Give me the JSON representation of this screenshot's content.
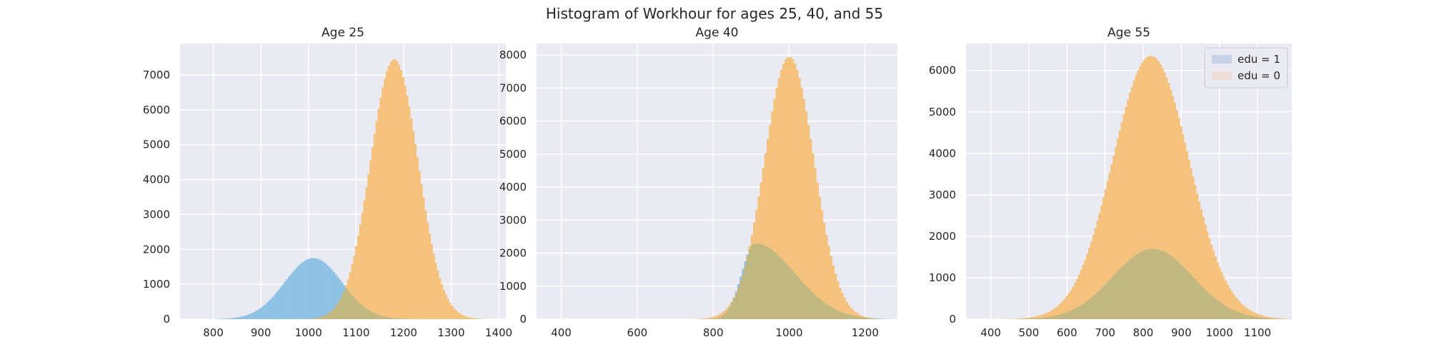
{
  "suptitle": "Histogram of Workhour for ages 25, 40, and 55",
  "colors": {
    "background": "#eaeaf2",
    "grid": "#ffffff",
    "edu1": "#8fc3e6",
    "edu0": "#f5c27d",
    "overlap": "#c2b77f",
    "edu1_legend": "#c6d0e6",
    "edu0_legend": "#eedcd6"
  },
  "chart_data": [
    {
      "type": "histogram",
      "title": "Age 25",
      "xlim": [
        730,
        1415
      ],
      "ylim": [
        0,
        7900
      ],
      "xticks": [
        800,
        900,
        1000,
        1100,
        1200,
        1300,
        1400
      ],
      "yticks": [
        0,
        1000,
        2000,
        3000,
        4000,
        5000,
        6000,
        7000
      ],
      "series": [
        {
          "key": "edu1",
          "peak_x": 1010,
          "peak_count": 1750,
          "sd": 60
        },
        {
          "key": "edu0",
          "peak_x": 1180,
          "peak_count": 7450,
          "sd": 50
        }
      ],
      "grid": true
    },
    {
      "type": "histogram",
      "title": "Age 40",
      "xlim": [
        335,
        1285
      ],
      "ylim": [
        0,
        8350
      ],
      "xticks": [
        400,
        600,
        800,
        1000,
        1200
      ],
      "yticks": [
        0,
        1000,
        2000,
        3000,
        4000,
        5000,
        6000,
        7000,
        8000
      ],
      "series": [
        {
          "key": "edu1",
          "peak_x": 910,
          "peak_count": 2300,
          "sd_left": 35,
          "sd_right": 105
        },
        {
          "key": "edu0",
          "peak_x": 1000,
          "peak_count": 7950,
          "sd": 65
        }
      ],
      "grid": true
    },
    {
      "type": "histogram",
      "title": "Age 55",
      "xlim": [
        335,
        1190
      ],
      "ylim": [
        0,
        6650
      ],
      "xticks": [
        400,
        500,
        600,
        700,
        800,
        900,
        1000,
        1100
      ],
      "yticks": [
        0,
        1000,
        2000,
        3000,
        4000,
        5000,
        6000
      ],
      "series": [
        {
          "key": "edu0",
          "peak_x": 820,
          "peak_count": 6350,
          "sd": 100
        },
        {
          "key": "edu1",
          "peak_x": 825,
          "peak_count": 1700,
          "sd": 105
        }
      ],
      "legend": {
        "position": "top-right",
        "entries": [
          {
            "key": "edu1",
            "label": "edu = 1"
          },
          {
            "key": "edu0",
            "label": "edu = 0"
          }
        ]
      },
      "grid": true
    }
  ]
}
